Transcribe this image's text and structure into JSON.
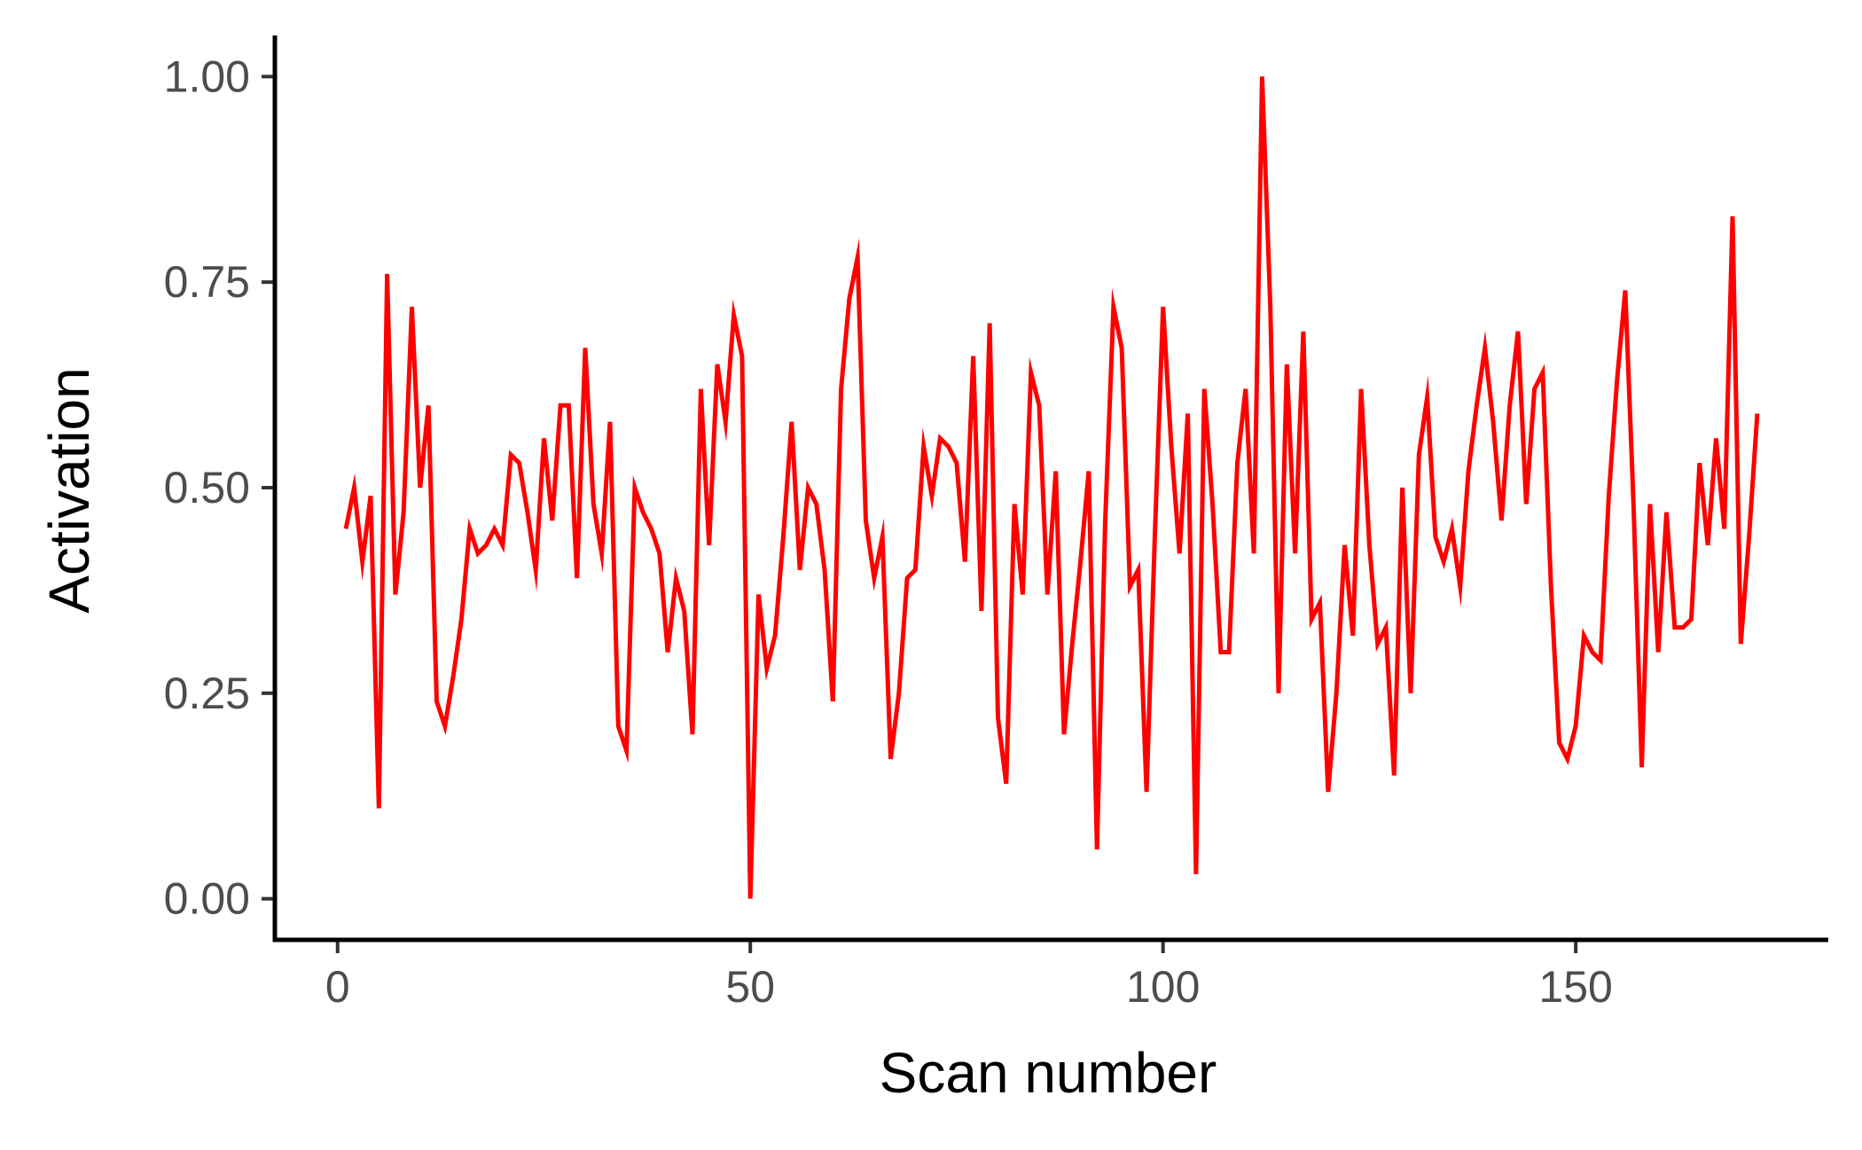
{
  "chart_data": {
    "type": "line",
    "title": "",
    "xlabel": "Scan number",
    "ylabel": "Activation",
    "xlim": [
      -7.6,
      180.6
    ],
    "ylim": [
      -0.05,
      1.05
    ],
    "x_ticks": [
      0,
      50,
      100,
      150
    ],
    "x_tick_labels": [
      "0",
      "50",
      "100",
      "150"
    ],
    "y_ticks": [
      0,
      0.25,
      0.5,
      0.75,
      1
    ],
    "y_tick_labels": [
      "0.00",
      "0.25",
      "0.50",
      "0.75",
      "1.00"
    ],
    "grid": false,
    "legend": "none",
    "line_color": "#ff0000",
    "series": [
      {
        "x": [
          1,
          2,
          3,
          4,
          5,
          6,
          7,
          8,
          9,
          10,
          11,
          12,
          13,
          14,
          15,
          16,
          17,
          18,
          19,
          20,
          21,
          22,
          23,
          24,
          25,
          26,
          27,
          28,
          29,
          30,
          31,
          32,
          33,
          34,
          35,
          36,
          37,
          38,
          39,
          40,
          41,
          42,
          43,
          44,
          45,
          46,
          47,
          48,
          49,
          50,
          51,
          52,
          53,
          54,
          55,
          56,
          57,
          58,
          59,
          60,
          61,
          62,
          63,
          64,
          65,
          66,
          67,
          68,
          69,
          70,
          71,
          72,
          73,
          74,
          75,
          76,
          77,
          78,
          79,
          80,
          81,
          82,
          83,
          84,
          85,
          86,
          87,
          88,
          89,
          90,
          91,
          92,
          93,
          94,
          95,
          96,
          97,
          98,
          99,
          100,
          101,
          102,
          103,
          104,
          105,
          106,
          107,
          108,
          109,
          110,
          111,
          112,
          113,
          114,
          115,
          116,
          117,
          118,
          119,
          120,
          121,
          122,
          123,
          124,
          125,
          126,
          127,
          128,
          129,
          130,
          131,
          132,
          133,
          134,
          135,
          136,
          137,
          138,
          139,
          140,
          141,
          142,
          143,
          144,
          145,
          146,
          147,
          148,
          149,
          150,
          151,
          152,
          153,
          154,
          155,
          156,
          157,
          158,
          159,
          160,
          161,
          162,
          163,
          164,
          165,
          166,
          167,
          168,
          169,
          170,
          171,
          172
        ],
        "values": [
          0.45,
          0.5,
          0.41,
          0.49,
          0.11,
          0.76,
          0.37,
          0.47,
          0.72,
          0.5,
          0.6,
          0.24,
          0.21,
          0.27,
          0.34,
          0.45,
          0.42,
          0.43,
          0.45,
          0.43,
          0.54,
          0.53,
          0.47,
          0.4,
          0.56,
          0.46,
          0.6,
          0.6,
          0.39,
          0.67,
          0.48,
          0.42,
          0.58,
          0.21,
          0.18,
          0.5,
          0.47,
          0.45,
          0.42,
          0.3,
          0.39,
          0.35,
          0.2,
          0.62,
          0.43,
          0.65,
          0.58,
          0.71,
          0.66,
          0.0,
          0.37,
          0.28,
          0.32,
          0.44,
          0.58,
          0.4,
          0.5,
          0.48,
          0.4,
          0.24,
          0.62,
          0.73,
          0.78,
          0.46,
          0.39,
          0.44,
          0.17,
          0.25,
          0.39,
          0.4,
          0.55,
          0.49,
          0.56,
          0.55,
          0.53,
          0.41,
          0.66,
          0.35,
          0.7,
          0.22,
          0.14,
          0.48,
          0.37,
          0.64,
          0.6,
          0.37,
          0.52,
          0.2,
          0.31,
          0.41,
          0.52,
          0.06,
          0.46,
          0.72,
          0.67,
          0.38,
          0.4,
          0.13,
          0.44,
          0.72,
          0.55,
          0.42,
          0.59,
          0.03,
          0.62,
          0.48,
          0.3,
          0.3,
          0.53,
          0.62,
          0.42,
          1.0,
          0.72,
          0.25,
          0.65,
          0.42,
          0.69,
          0.34,
          0.36,
          0.13,
          0.25,
          0.43,
          0.32,
          0.62,
          0.43,
          0.31,
          0.33,
          0.15,
          0.5,
          0.25,
          0.54,
          0.61,
          0.44,
          0.41,
          0.45,
          0.38,
          0.52,
          0.6,
          0.67,
          0.58,
          0.46,
          0.6,
          0.69,
          0.48,
          0.62,
          0.64,
          0.38,
          0.19,
          0.17,
          0.21,
          0.32,
          0.3,
          0.29,
          0.49,
          0.63,
          0.74,
          0.48,
          0.16,
          0.48,
          0.3,
          0.47,
          0.33,
          0.33,
          0.34,
          0.53,
          0.43,
          0.56,
          0.45,
          0.83,
          0.31,
          0.44,
          0.59
        ]
      }
    ]
  }
}
